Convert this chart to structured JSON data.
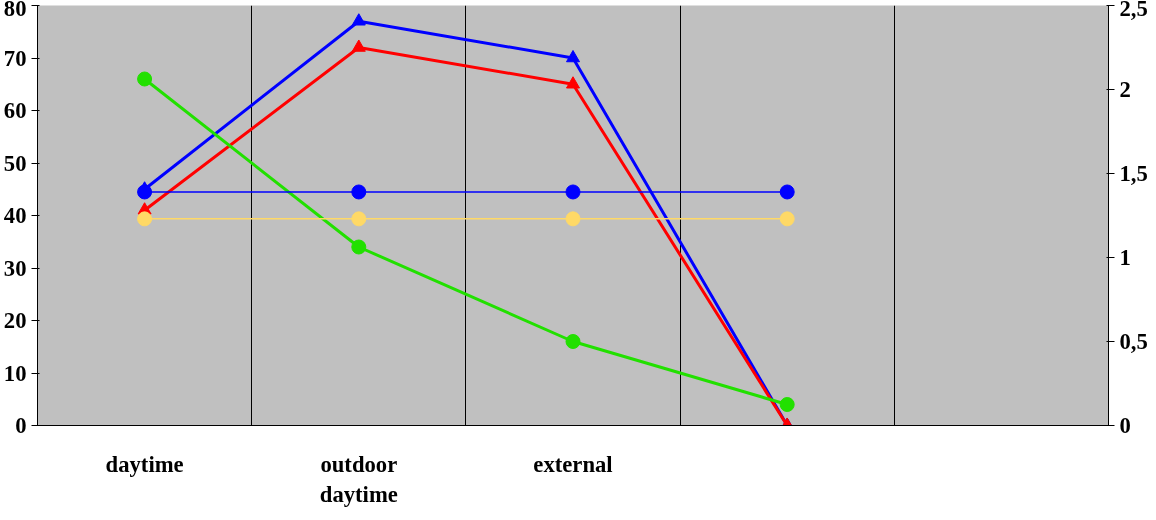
{
  "chart_data": {
    "type": "line",
    "categories": [
      "daytime",
      "outdoor daytime",
      "external",
      null,
      null
    ],
    "ylim": [
      0,
      80
    ],
    "yticks": [
      0,
      10,
      20,
      30,
      40,
      50,
      60,
      70,
      80
    ],
    "y2lim": [
      0,
      2.5
    ],
    "y2ticks": [
      {
        "value": 0,
        "label": "0"
      },
      {
        "value": 0.5,
        "label": "0,5"
      },
      {
        "value": 1,
        "label": "1"
      },
      {
        "value": 1.5,
        "label": "1,5"
      },
      {
        "value": 2,
        "label": "2"
      },
      {
        "value": 2.5,
        "label": "2,5"
      }
    ],
    "grid": "x",
    "series": [
      {
        "color": "#0000ff",
        "marker": "triangle",
        "values": [
          45,
          77,
          70,
          0,
          null
        ]
      },
      {
        "color": "#ff0000",
        "marker": "triangle",
        "values": [
          41,
          72,
          65,
          0,
          null
        ]
      },
      {
        "color": "#22e000",
        "marker": "circle",
        "values": [
          66,
          34,
          16,
          4,
          null
        ]
      },
      {
        "color": "#0000ff",
        "marker": "circle",
        "axis": "y2",
        "values": [
          1.39,
          1.39,
          1.39,
          1.39,
          null
        ]
      },
      {
        "color": "#ffd966",
        "marker": "circle",
        "axis": "y2",
        "values": [
          1.23,
          1.23,
          1.23,
          1.23,
          null
        ]
      }
    ]
  }
}
